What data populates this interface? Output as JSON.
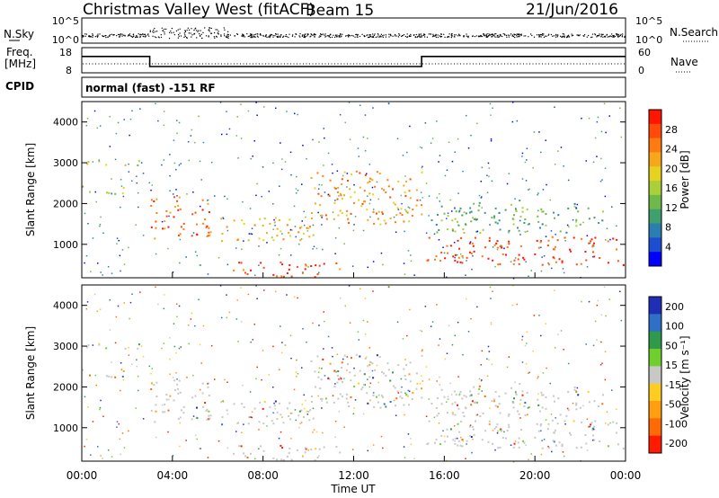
{
  "header": {
    "title": "Christmas Valley West (fitACF)",
    "beam": "Beam 15",
    "date": "21/Jun/2016"
  },
  "strip_labels": {
    "nsky": "N.Sky",
    "nsky_ticks": [
      "10^5",
      "10^0"
    ],
    "nsearch": "N.Search",
    "nsearch_ticks": [
      "10^5",
      "10^0"
    ],
    "freq_line1": "Freq.",
    "freq_line2": "[MHz]",
    "freq_ticks": [
      "18",
      "8"
    ],
    "nave": "Nave",
    "nave_ticks": [
      "60",
      "0"
    ],
    "cpid": "CPID",
    "cpid_text": "normal (fast) -151 RF"
  },
  "chart_data": {
    "type": "heatmap",
    "xlabel": "Time UT",
    "x_ticks": [
      "00:00",
      "04:00",
      "08:00",
      "12:00",
      "16:00",
      "20:00",
      "00:00"
    ],
    "x_range_hours": [
      0,
      24
    ],
    "ylabel": "Slant Range [km]",
    "y_ticks": [
      1000,
      2000,
      3000,
      4000
    ],
    "y_range_km": [
      180,
      4500
    ],
    "freq_steps": [
      {
        "from_h": 0,
        "to_h": 3,
        "freq_mhz": 14.5
      },
      {
        "from_h": 3,
        "to_h": 15,
        "freq_mhz": 10.5
      },
      {
        "from_h": 15,
        "to_h": 24,
        "freq_mhz": 14.5
      }
    ],
    "power_panel": {
      "colorbar_label": "Power [dB]",
      "colorbar_ticks": [
        4,
        8,
        12,
        16,
        20,
        24,
        28
      ],
      "range": [
        0,
        32
      ],
      "colors": [
        "#0000ff",
        "#1c4fd0",
        "#2a7fb0",
        "#3f9f6f",
        "#6fb84a",
        "#a9cf3a",
        "#e6d21f",
        "#f7a81a",
        "#ff7a10",
        "#ff4a0a",
        "#ff1500"
      ]
    },
    "velocity_panel": {
      "colorbar_label": "Velocity [m s⁻¹]",
      "colorbar_ticks": [
        200,
        100,
        50,
        15,
        -15,
        -50,
        -100,
        -200
      ],
      "colors": [
        "#1f2fb5",
        "#2f6fc8",
        "#2f9a4a",
        "#6fcf2f",
        "#c8c8c4",
        "#ffcc22",
        "#ff9f10",
        "#ff6a05",
        "#ff1a00"
      ]
    },
    "regions": [
      {
        "name": "ridge-1",
        "t0": 0.0,
        "t1": 2.8,
        "r0": 2950,
        "r1": 3100,
        "v": 18
      },
      {
        "name": "band-early",
        "t0": 0.0,
        "t1": 2.0,
        "r0": 2200,
        "r1": 2450,
        "v": 14
      },
      {
        "name": "arc-early",
        "t0": 3.0,
        "t1": 5.8,
        "r0": 1150,
        "r1": 2200,
        "v": 27
      },
      {
        "name": "wedge",
        "t0": 6.0,
        "t1": 10.2,
        "r0": 1100,
        "r1": 1700,
        "v": 22
      },
      {
        "name": "near-range-morning",
        "t0": 6.5,
        "t1": 11.5,
        "r0": 200,
        "r1": 600,
        "v": 28
      },
      {
        "name": "slope-1",
        "t0": 10.0,
        "t1": 15.0,
        "r0": 1500,
        "r1": 2850,
        "v": 24
      },
      {
        "name": "late-band",
        "t0": 15.0,
        "t1": 24.0,
        "r0": 500,
        "r1": 1200,
        "v": 29
      },
      {
        "name": "late-upper",
        "t0": 15.2,
        "t1": 23.0,
        "r0": 1300,
        "r1": 2100,
        "v": 12
      }
    ]
  }
}
